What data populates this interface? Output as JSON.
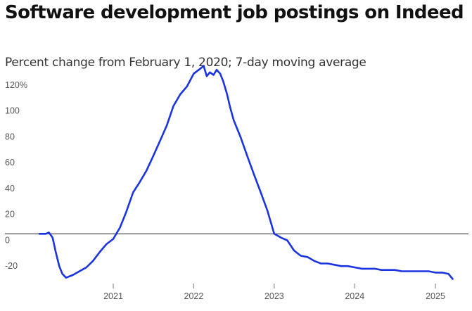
{
  "chart_data": {
    "type": "line",
    "title": "Software development job postings on Indeed",
    "subtitle": "Percent change from February 1, 2020; 7-day moving average",
    "xlabel": "",
    "ylabel": "",
    "xlim": [
      "2020-01-01",
      "2025-05-01"
    ],
    "ylim": [
      -36,
      130
    ],
    "grid": false,
    "legend": "none",
    "line_color": "#1a35e0",
    "zero_line_color": "#222222",
    "y_ticks": [
      {
        "value": 120,
        "label": "120%"
      },
      {
        "value": 100,
        "label": "100"
      },
      {
        "value": 80,
        "label": "80"
      },
      {
        "value": 60,
        "label": "60"
      },
      {
        "value": 40,
        "label": "40"
      },
      {
        "value": 20,
        "label": "20"
      },
      {
        "value": 0,
        "label": "0"
      },
      {
        "value": -20,
        "label": "-20"
      }
    ],
    "x_ticks": [
      {
        "value": "2021-01-01",
        "label": "2021"
      },
      {
        "value": "2022-01-01",
        "label": "2022"
      },
      {
        "value": "2023-01-01",
        "label": "2023"
      },
      {
        "value": "2024-01-01",
        "label": "2024"
      },
      {
        "value": "2025-01-01",
        "label": "2025"
      }
    ],
    "series": [
      {
        "x": [
          "2020-02-01",
          "2020-03-01",
          "2020-03-15",
          "2020-04-01",
          "2020-04-15",
          "2020-05-01",
          "2020-05-15",
          "2020-06-01",
          "2020-06-15",
          "2020-07-01",
          "2020-08-01",
          "2020-09-01",
          "2020-10-01",
          "2020-11-01",
          "2020-12-01",
          "2021-01-01",
          "2021-02-01",
          "2021-03-01",
          "2021-04-01",
          "2021-05-01",
          "2021-06-01",
          "2021-07-01",
          "2021-08-01",
          "2021-09-01",
          "2021-10-01",
          "2021-11-01",
          "2021-12-01",
          "2022-01-01",
          "2022-02-01",
          "2022-02-15",
          "2022-03-01",
          "2022-03-15",
          "2022-04-01",
          "2022-04-15",
          "2022-05-01",
          "2022-05-15",
          "2022-06-01",
          "2022-06-15",
          "2022-07-01",
          "2022-08-01",
          "2022-09-01",
          "2022-10-01",
          "2022-11-01",
          "2022-12-01",
          "2023-01-01",
          "2023-02-01",
          "2023-03-01",
          "2023-04-01",
          "2023-05-01",
          "2023-06-01",
          "2023-07-01",
          "2023-08-01",
          "2023-09-01",
          "2023-10-01",
          "2023-11-01",
          "2023-12-01",
          "2024-01-01",
          "2024-02-01",
          "2024-03-01",
          "2024-04-01",
          "2024-05-01",
          "2024-06-01",
          "2024-07-01",
          "2024-08-01",
          "2024-09-01",
          "2024-10-01",
          "2024-11-01",
          "2024-12-01",
          "2025-01-01",
          "2025-02-01",
          "2025-03-01",
          "2025-03-20"
        ],
        "y": [
          0,
          0,
          1,
          -3,
          -14,
          -25,
          -31,
          -34,
          -33,
          -32,
          -29,
          -26,
          -21,
          -14,
          -8,
          -4,
          5,
          17,
          32,
          40,
          49,
          60,
          72,
          84,
          99,
          108,
          114,
          124,
          128,
          130,
          122,
          125,
          123,
          127,
          124,
          118,
          108,
          98,
          88,
          75,
          60,
          46,
          32,
          18,
          0,
          -3,
          -5,
          -13,
          -17,
          -18,
          -21,
          -23,
          -23,
          -24,
          -25,
          -25,
          -26,
          -27,
          -27,
          -27,
          -28,
          -28,
          -28,
          -29,
          -29,
          -29,
          -29,
          -29,
          -30,
          -30,
          -31,
          -35
        ]
      }
    ]
  }
}
